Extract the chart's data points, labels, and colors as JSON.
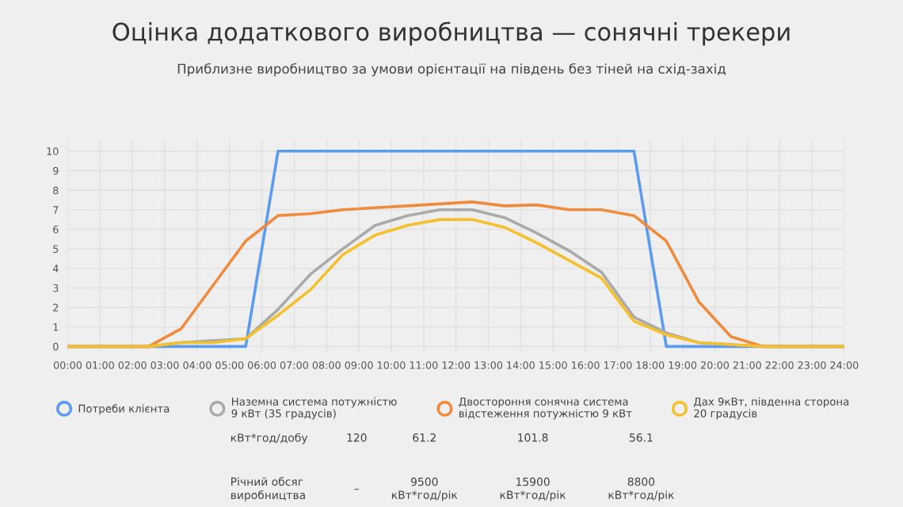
{
  "chart_data": {
    "type": "line",
    "title": "Оцінка додаткового виробництва — сонячні трекери",
    "subtitle": "Приблизне виробництво за умови орієнтації на південь без тіней на схід-захід",
    "xlim": [
      0,
      24
    ],
    "xticks": [
      {
        "value": 0,
        "label": "00:00"
      },
      {
        "value": 1,
        "label": "01:00"
      },
      {
        "value": 2,
        "label": "02:00"
      },
      {
        "value": 3,
        "label": "03:00"
      },
      {
        "value": 4,
        "label": "04:00"
      },
      {
        "value": 5,
        "label": "05:00"
      },
      {
        "value": 6,
        "label": "06:00"
      },
      {
        "value": 7,
        "label": "07:00"
      },
      {
        "value": 8,
        "label": "08:00"
      },
      {
        "value": 9,
        "label": "09:00"
      },
      {
        "value": 10,
        "label": "10:00"
      },
      {
        "value": 11,
        "label": "11:00"
      },
      {
        "value": 12,
        "label": "12:00"
      },
      {
        "value": 13,
        "label": "13:00"
      },
      {
        "value": 14,
        "label": "14:00"
      },
      {
        "value": 15,
        "label": "15:00"
      },
      {
        "value": 16,
        "label": "16:00"
      },
      {
        "value": 17,
        "label": "17:00"
      },
      {
        "value": 18,
        "label": "18:00"
      },
      {
        "value": 19,
        "label": "19:00"
      },
      {
        "value": 20,
        "label": "20:00"
      },
      {
        "value": 21,
        "label": "21:00"
      },
      {
        "value": 22,
        "label": "22:00"
      },
      {
        "value": 23,
        "label": "23:00"
      },
      {
        "value": 24,
        "label": "24:00"
      }
    ],
    "ylim": [
      -0.3,
      10.6
    ],
    "yticks": [
      0,
      1,
      2,
      3,
      4,
      5,
      6,
      7,
      8,
      9,
      10
    ],
    "grid": true,
    "legend": "bottom",
    "marker": "none",
    "line_style": "solid",
    "series": [
      {
        "name": "Потреби клієнта",
        "color": "#5b9cf0",
        "x": [
          0,
          5.5,
          6.5,
          17.5,
          18.5,
          24
        ],
        "values": [
          0,
          0,
          10,
          10,
          0,
          0
        ]
      },
      {
        "name": "Наземна система потужністю\n9 кВт (35 градусів)",
        "color": "#aaaaaa",
        "x": [
          0,
          2.5,
          3.5,
          4.5,
          5.5,
          6.5,
          7.5,
          8.5,
          9.5,
          10.5,
          11.5,
          12.5,
          13.5,
          14.5,
          15.5,
          16.5,
          17.5,
          18.5,
          19.5,
          20.5,
          21.5,
          24
        ],
        "values": [
          0,
          0,
          0.2,
          0.3,
          0.4,
          1.9,
          3.7,
          5.0,
          6.2,
          6.7,
          7.0,
          7.0,
          6.6,
          5.8,
          4.9,
          3.8,
          1.5,
          0.7,
          0.2,
          0.1,
          0,
          0
        ]
      },
      {
        "name": "Двостороння сонячна система\nвідстеження потужністю 9 кВт",
        "color": "#f08a3c",
        "x": [
          0,
          2.5,
          3.5,
          5.5,
          6.5,
          7.5,
          8.5,
          9.5,
          10.5,
          11.5,
          12.5,
          13.5,
          14.5,
          15.5,
          16.5,
          17.5,
          18.5,
          19.5,
          20.5,
          21.5,
          24
        ],
        "values": [
          0,
          0,
          0.9,
          5.4,
          6.7,
          6.8,
          7.0,
          7.1,
          7.2,
          7.3,
          7.4,
          7.2,
          7.25,
          7.0,
          7.0,
          6.7,
          5.4,
          2.3,
          0.5,
          0,
          0
        ]
      },
      {
        "name": "Дах 9кВт, південна сторона\n20 градусів",
        "color": "#f5c02c",
        "x": [
          0,
          2.5,
          3.5,
          4.5,
          5.5,
          6.5,
          7.5,
          8.5,
          9.5,
          10.5,
          11.5,
          12.5,
          13.5,
          14.5,
          15.5,
          16.5,
          17.5,
          18.5,
          19.5,
          20.5,
          21.5,
          24
        ],
        "values": [
          0,
          0,
          0.2,
          0.2,
          0.4,
          1.6,
          2.9,
          4.7,
          5.7,
          6.2,
          6.5,
          6.5,
          6.1,
          5.3,
          4.4,
          3.5,
          1.3,
          0.6,
          0.2,
          0.1,
          0,
          0
        ]
      }
    ],
    "annotations": [
      "кВт*год/добу",
      "120",
      "61.2",
      "101.8",
      "56.1",
      "Річний обсяг\nвиробництва",
      "–",
      "9500\nкВт*год/рік",
      "15900\nкВт*год/рік",
      "8800\nкВт*год/рік"
    ]
  }
}
